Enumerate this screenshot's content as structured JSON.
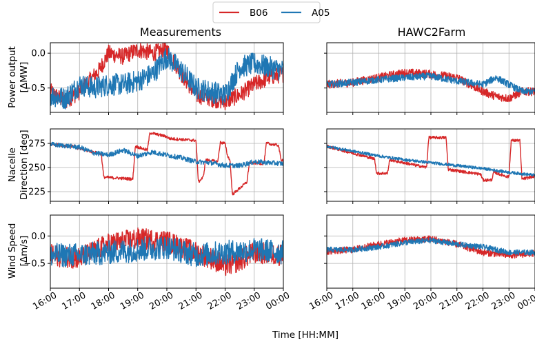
{
  "legend": [
    {
      "name": "B06",
      "color": "#d62728"
    },
    {
      "name": "A05",
      "color": "#1f77b4"
    }
  ],
  "xlabel": "Time [HH:MM]",
  "chart_data": {
    "type": "line",
    "x_ticks": [
      "16:00",
      "17:00",
      "18:00",
      "19:00",
      "20:00",
      "21:00",
      "22:00",
      "23:00",
      "00:00"
    ],
    "xlim": [
      "16:00",
      "00:00"
    ],
    "columns": [
      "Measurements",
      "HAWC2Farm"
    ],
    "rows": [
      {
        "ylabel": [
          "Power output",
          "[ΔMW]"
        ],
        "ylim": [
          -0.85,
          0.15
        ],
        "yticks": [
          0.0,
          -0.5
        ],
        "ytick_labels": [
          "0.0",
          "−0.5"
        ],
        "panels": [
          {
            "column": "Measurements",
            "series": [
              {
                "name": "B06",
                "x": [
                  "16:00",
                  "16:30",
                  "17:00",
                  "17:20",
                  "17:40",
                  "18:00",
                  "18:30",
                  "19:00",
                  "19:30",
                  "20:00",
                  "20:30",
                  "21:00",
                  "21:30",
                  "22:00",
                  "22:30",
                  "23:00",
                  "23:30",
                  "00:00"
                ],
                "y": [
                  -0.55,
                  -0.7,
                  -0.55,
                  -0.4,
                  -0.25,
                  0.0,
                  -0.05,
                  0.05,
                  0.0,
                  0.05,
                  -0.3,
                  -0.6,
                  -0.65,
                  -0.7,
                  -0.6,
                  -0.45,
                  -0.35,
                  -0.3
                ],
                "noise": 0.12
              },
              {
                "name": "A05",
                "x": [
                  "16:00",
                  "16:30",
                  "17:00",
                  "17:30",
                  "18:00",
                  "18:30",
                  "19:00",
                  "19:30",
                  "20:00",
                  "20:30",
                  "21:00",
                  "21:30",
                  "22:00",
                  "22:30",
                  "23:00",
                  "23:30",
                  "00:00"
                ],
                "y": [
                  -0.6,
                  -0.65,
                  -0.45,
                  -0.5,
                  -0.45,
                  -0.45,
                  -0.4,
                  -0.3,
                  -0.05,
                  -0.25,
                  -0.5,
                  -0.55,
                  -0.6,
                  -0.2,
                  -0.15,
                  -0.2,
                  -0.25
                ],
                "noise": 0.16
              }
            ]
          },
          {
            "column": "HAWC2Farm",
            "series": [
              {
                "name": "B06",
                "x": [
                  "16:00",
                  "17:00",
                  "18:00",
                  "19:00",
                  "20:00",
                  "21:00",
                  "21:30",
                  "22:00",
                  "22:30",
                  "23:00",
                  "23:30",
                  "00:00"
                ],
                "y": [
                  -0.45,
                  -0.42,
                  -0.35,
                  -0.28,
                  -0.3,
                  -0.35,
                  -0.45,
                  -0.55,
                  -0.62,
                  -0.65,
                  -0.55,
                  -0.55
                ],
                "noise": 0.06
              },
              {
                "name": "A05",
                "x": [
                  "16:00",
                  "17:00",
                  "18:00",
                  "19:00",
                  "20:00",
                  "21:00",
                  "22:00",
                  "22:30",
                  "23:00",
                  "23:30",
                  "00:00"
                ],
                "y": [
                  -0.45,
                  -0.42,
                  -0.38,
                  -0.35,
                  -0.33,
                  -0.4,
                  -0.45,
                  -0.35,
                  -0.45,
                  -0.55,
                  -0.55
                ],
                "noise": 0.05
              }
            ]
          }
        ]
      },
      {
        "ylabel": [
          "Nacelle",
          "Direction [deg]"
        ],
        "ylim": [
          215,
          290
        ],
        "yticks": [
          275,
          250,
          225
        ],
        "ytick_labels": [
          "275",
          "250",
          "225"
        ],
        "panels": [
          {
            "column": "Measurements",
            "series": [
              {
                "name": "B06",
                "x": [
                  "16:00",
                  "16:50",
                  "16:55",
                  "17:45",
                  "17:50",
                  "18:50",
                  "18:55",
                  "19:20",
                  "19:25",
                  "20:00",
                  "20:05",
                  "21:00",
                  "21:05",
                  "21:15",
                  "21:20",
                  "21:45",
                  "21:50",
                  "22:00",
                  "22:05",
                  "22:10",
                  "22:15",
                  "22:45",
                  "22:50",
                  "23:20",
                  "23:25",
                  "23:50",
                  "23:55",
                  "00:00"
                ],
                "y": [
                  274,
                  272,
                  270,
                  264,
                  240,
                  238,
                  272,
                  268,
                  286,
                  282,
                  280,
                  278,
                  235,
                  240,
                  258,
                  256,
                  276,
                  275,
                  262,
                  258,
                  222,
                  235,
                  255,
                  254,
                  275,
                  273,
                  258,
                  258
                ],
                "noise": 1.5
              },
              {
                "name": "A05",
                "x": [
                  "16:00",
                  "17:00",
                  "17:30",
                  "18:00",
                  "18:30",
                  "19:00",
                  "19:30",
                  "20:00",
                  "20:30",
                  "21:00",
                  "21:30",
                  "22:00",
                  "22:30",
                  "23:00",
                  "23:30",
                  "00:00"
                ],
                "y": [
                  274,
                  271,
                  265,
                  263,
                  268,
                  262,
                  266,
                  263,
                  260,
                  256,
                  255,
                  252,
                  252,
                  256,
                  255,
                  254
                ],
                "noise": 2.5
              }
            ]
          },
          {
            "column": "HAWC2Farm",
            "series": [
              {
                "name": "B06",
                "x": [
                  "16:00",
                  "17:50",
                  "17:55",
                  "18:20",
                  "18:25",
                  "19:50",
                  "19:55",
                  "20:35",
                  "20:40",
                  "21:55",
                  "22:00",
                  "22:20",
                  "22:25",
                  "23:00",
                  "23:05",
                  "23:25",
                  "23:30",
                  "00:00"
                ],
                "y": [
                  272,
                  259,
                  244,
                  244,
                  258,
                  250,
                  281,
                  281,
                  248,
                  243,
                  237,
                  237,
                  245,
                  240,
                  278,
                  278,
                  238,
                  241
                ],
                "noise": 1.5
              },
              {
                "name": "A05",
                "x": [
                  "16:00",
                  "17:00",
                  "18:00",
                  "19:00",
                  "20:00",
                  "21:00",
                  "22:00",
                  "23:00",
                  "00:00"
                ],
                "y": [
                  272,
                  267,
                  262,
                  258,
                  255,
                  252,
                  249,
                  245,
                  242
                ],
                "noise": 1.5
              }
            ]
          }
        ]
      },
      {
        "ylabel": [
          "Wind Speed",
          "[Δm/s]"
        ],
        "ylim": [
          -0.95,
          0.38
        ],
        "yticks": [
          0.0,
          -0.5
        ],
        "ytick_labels": [
          "0.0",
          "−0.5"
        ],
        "panels": [
          {
            "column": "Measurements",
            "series": [
              {
                "name": "B06",
                "x": [
                  "16:00",
                  "17:00",
                  "18:00",
                  "19:00",
                  "20:00",
                  "21:00",
                  "21:30",
                  "22:00",
                  "22:30",
                  "23:00",
                  "00:00"
                ],
                "y": [
                  -0.35,
                  -0.4,
                  -0.15,
                  -0.05,
                  -0.1,
                  -0.3,
                  -0.4,
                  -0.55,
                  -0.45,
                  -0.3,
                  -0.35
                ],
                "noise": 0.2
              },
              {
                "name": "A05",
                "x": [
                  "16:00",
                  "17:00",
                  "18:00",
                  "19:00",
                  "20:00",
                  "21:00",
                  "22:00",
                  "23:00",
                  "00:00"
                ],
                "y": [
                  -0.35,
                  -0.35,
                  -0.3,
                  -0.25,
                  -0.2,
                  -0.35,
                  -0.3,
                  -0.25,
                  -0.3
                ],
                "noise": 0.22
              }
            ]
          },
          {
            "column": "HAWC2Farm",
            "series": [
              {
                "name": "B06",
                "x": [
                  "16:00",
                  "17:00",
                  "18:00",
                  "19:00",
                  "20:00",
                  "21:00",
                  "22:00",
                  "23:00",
                  "00:00"
                ],
                "y": [
                  -0.28,
                  -0.25,
                  -0.15,
                  -0.08,
                  -0.05,
                  -0.15,
                  -0.3,
                  -0.35,
                  -0.32
                ],
                "noise": 0.06
              },
              {
                "name": "A05",
                "x": [
                  "16:00",
                  "17:00",
                  "18:00",
                  "19:00",
                  "20:00",
                  "21:00",
                  "22:00",
                  "23:00",
                  "00:00"
                ],
                "y": [
                  -0.25,
                  -0.25,
                  -0.2,
                  -0.12,
                  -0.08,
                  -0.15,
                  -0.2,
                  -0.3,
                  -0.3
                ],
                "noise": 0.05
              }
            ]
          }
        ]
      }
    ]
  }
}
